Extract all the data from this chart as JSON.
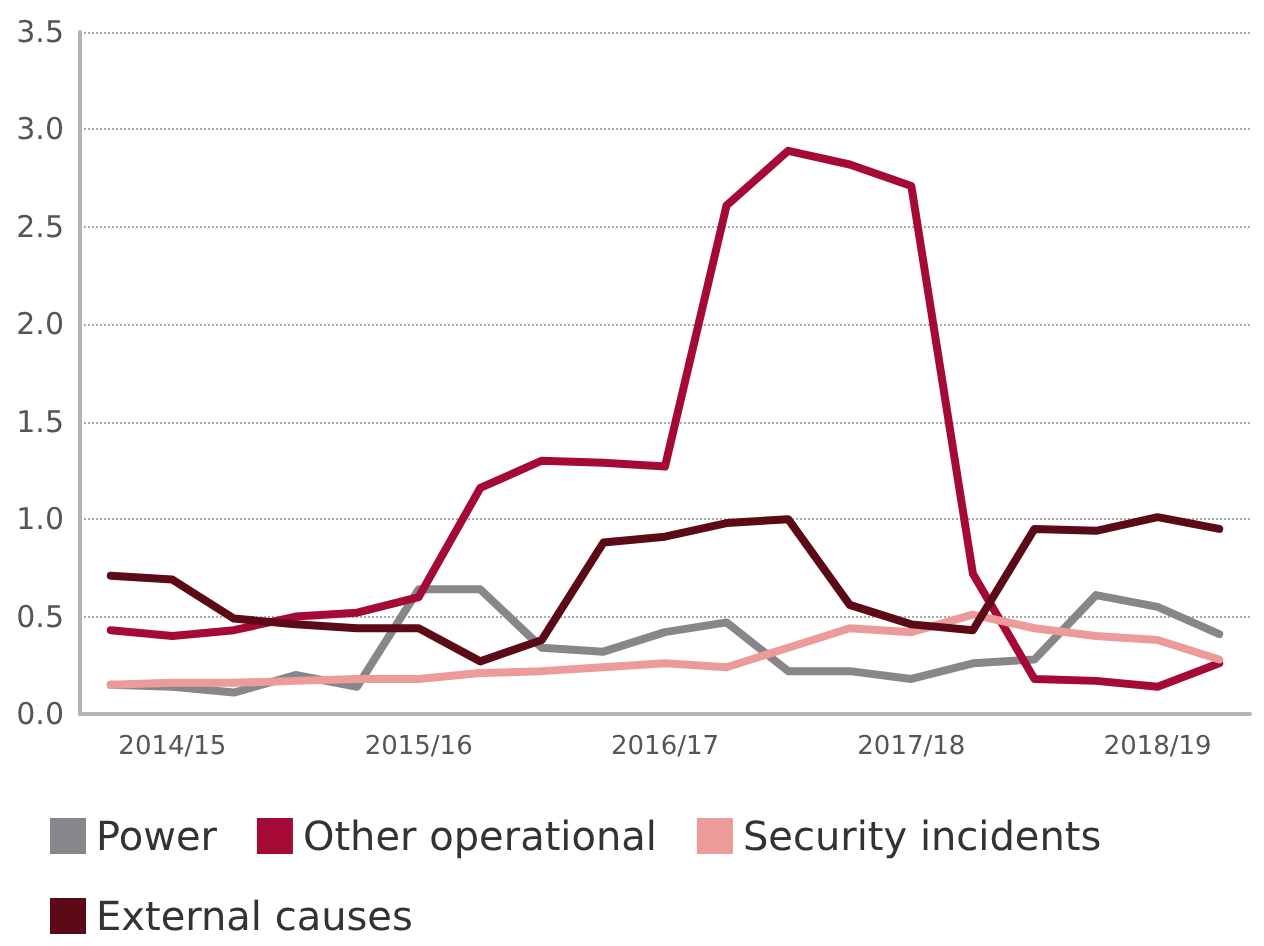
{
  "chart_data": {
    "type": "line",
    "categories": [
      null,
      "2014/15",
      null,
      null,
      null,
      "2015/16",
      null,
      null,
      null,
      "2016/17",
      null,
      null,
      null,
      "2017/18",
      null,
      null,
      null,
      "2018/19",
      null
    ],
    "series": [
      {
        "name": "Power",
        "color": "#87868a",
        "values": [
          0.15,
          0.14,
          0.11,
          0.2,
          0.14,
          0.64,
          0.64,
          0.34,
          0.32,
          0.42,
          0.47,
          0.22,
          0.22,
          0.18,
          0.26,
          0.28,
          0.61,
          0.55,
          0.41
        ]
      },
      {
        "name": "Other operational",
        "color": "#a50a37",
        "values": [
          0.43,
          0.4,
          0.43,
          0.5,
          0.52,
          0.6,
          1.16,
          1.3,
          1.29,
          1.27,
          2.61,
          2.89,
          2.82,
          2.71,
          0.72,
          0.18,
          0.17,
          0.14,
          0.26
        ]
      },
      {
        "name": "Security incidents",
        "color": "#ec9a9a",
        "values": [
          0.15,
          0.16,
          0.16,
          0.17,
          0.18,
          0.18,
          0.21,
          0.22,
          0.24,
          0.26,
          0.24,
          0.34,
          0.44,
          0.42,
          0.51,
          0.44,
          0.4,
          0.38,
          0.28
        ]
      },
      {
        "name": "External causes",
        "color": "#5c0a16",
        "values": [
          0.71,
          0.69,
          0.49,
          0.46,
          0.44,
          0.44,
          0.27,
          0.38,
          0.88,
          0.91,
          0.98,
          1.0,
          0.56,
          0.46,
          0.43,
          0.95,
          0.94,
          1.01,
          0.95
        ]
      }
    ],
    "ylim": [
      0,
      3.5
    ],
    "yticks": [
      {
        "value": 0,
        "label": "0.0"
      },
      {
        "value": 0.5,
        "label": "0.5"
      },
      {
        "value": 1,
        "label": "1.0"
      },
      {
        "value": 1.5,
        "label": "1.5"
      },
      {
        "value": 2,
        "label": "2.0"
      },
      {
        "value": 2.5,
        "label": "2.5"
      },
      {
        "value": 3,
        "label": "3.0"
      },
      {
        "value": 3.5,
        "label": "3.5"
      }
    ],
    "grid": "y",
    "legend": "bottom",
    "marker": "none",
    "line_style": "solid"
  }
}
